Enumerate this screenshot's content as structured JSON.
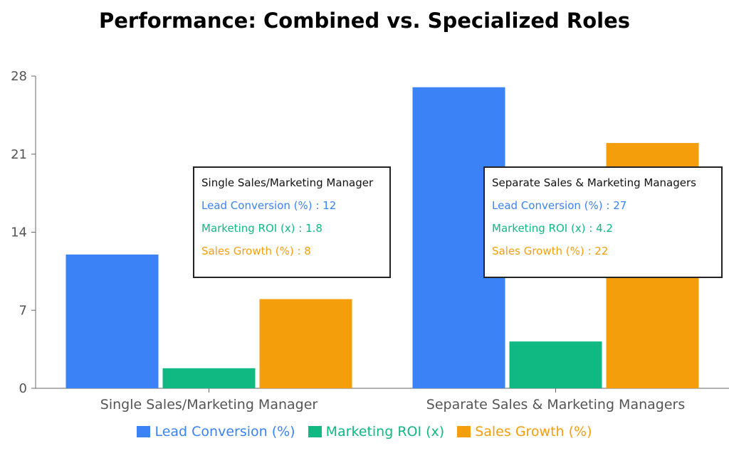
{
  "chart_data": {
    "type": "bar",
    "title": "Performance: Combined vs. Specialized Roles",
    "categories": [
      "Single Sales/Marketing Manager",
      "Separate Sales & Marketing Managers"
    ],
    "series": [
      {
        "name": "Lead Conversion (%)",
        "values": [
          12,
          27
        ],
        "color": "#3b82f6"
      },
      {
        "name": "Marketing ROI (x)",
        "values": [
          1.8,
          4.2
        ],
        "color": "#10b981"
      },
      {
        "name": "Sales Growth (%)",
        "values": [
          8,
          22
        ],
        "color": "#f59e0b"
      }
    ],
    "yticks": [
      "0",
      "7",
      "14",
      "21",
      "28"
    ],
    "ylim": [
      0,
      28
    ],
    "grid": false,
    "legend_position": "bottom"
  },
  "tooltips": [
    {
      "title": "Single Sales/Marketing Manager",
      "rows": [
        "Lead Conversion (%) : 12",
        "Marketing ROI (x) : 1.8",
        "Sales Growth (%) : 8"
      ]
    },
    {
      "title": "Separate Sales & Marketing Managers",
      "rows": [
        "Lead Conversion (%) : 27",
        "Marketing ROI (x) : 4.2",
        "Sales Growth (%) : 22"
      ]
    }
  ]
}
